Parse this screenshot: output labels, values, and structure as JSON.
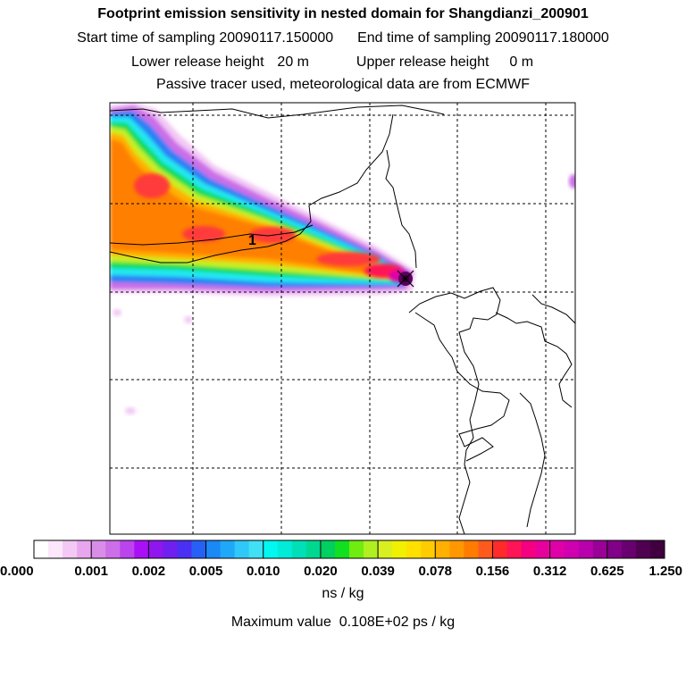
{
  "chart_data": {
    "type": "heatmap",
    "title": "Footprint emission sensitivity in nested domain for Shangdianzi_200901",
    "start_label": "Start time of sampling",
    "start_value": "20090117.150000",
    "end_label": "End time of sampling",
    "end_value": "20090117.180000",
    "lower_label": "Lower release height",
    "lower_value": "20 m",
    "upper_label": "Upper release height",
    "upper_value": "0 m",
    "subtitle": "Passive tracer used, meteorological data are from ECMWF",
    "contour_label": "1",
    "colorbar_ticks": [
      "0.000",
      "0.001",
      "0.002",
      "0.005",
      "0.010",
      "0.020",
      "0.039",
      "0.078",
      "0.156",
      "0.312",
      "0.625",
      "1.250"
    ],
    "colorbar_colors": [
      "#ffffff",
      "#fbe6fb",
      "#f3c8f5",
      "#e9a6ef",
      "#d98de8",
      "#cc6ee8",
      "#bb44ee",
      "#aa10f5",
      "#8f16ee",
      "#7020ee",
      "#4a30f2",
      "#2860f5",
      "#1a88f5",
      "#20a8f8",
      "#30c8f8",
      "#40e0f5",
      "#00f8f0",
      "#00ecd8",
      "#00e0b8",
      "#00d890",
      "#00d060",
      "#10e020",
      "#70ec10",
      "#b0f020",
      "#d8f020",
      "#f0f000",
      "#ffe000",
      "#ffcc00",
      "#ffb000",
      "#ff9800",
      "#ff7c00",
      "#ff5a1e",
      "#ff2a2a",
      "#ff1455",
      "#f50080",
      "#e8009c",
      "#e000a8",
      "#d000b0",
      "#b800ac",
      "#9a0098",
      "#800088",
      "#680070",
      "#500050",
      "#400040"
    ],
    "unit": "ns / kg",
    "max_label": "Maximum value",
    "max_value": "0.108E+02 ps / kg",
    "lon_lines": 5,
    "lat_lines": 5
  }
}
